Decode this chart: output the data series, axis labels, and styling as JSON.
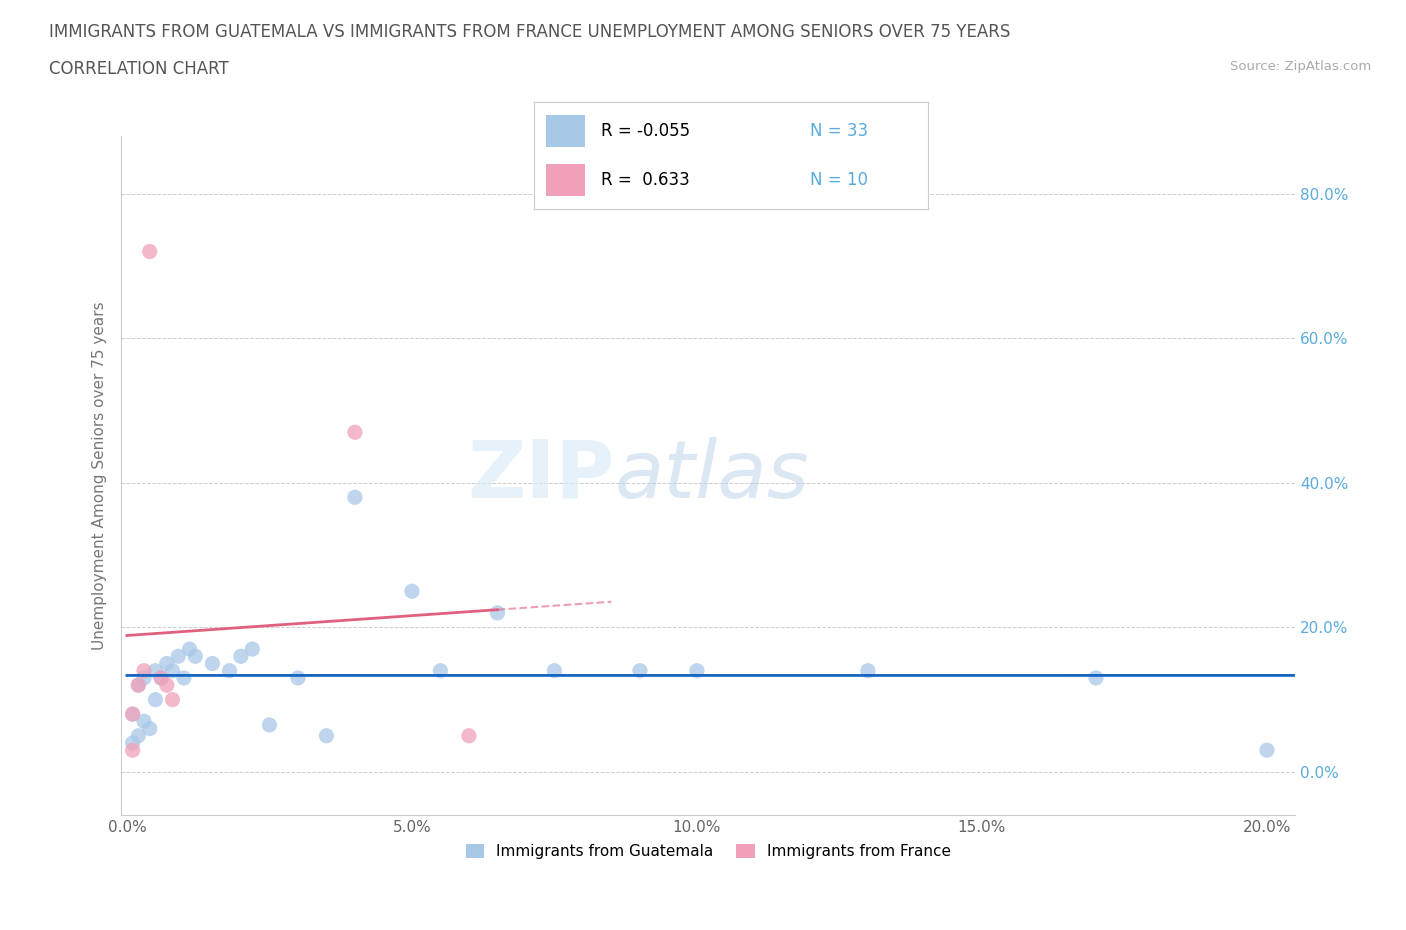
{
  "title_line1": "IMMIGRANTS FROM GUATEMALA VS IMMIGRANTS FROM FRANCE UNEMPLOYMENT AMONG SENIORS OVER 75 YEARS",
  "title_line2": "CORRELATION CHART",
  "source_text": "Source: ZipAtlas.com",
  "ylabel": "Unemployment Among Seniors over 75 years",
  "xlim": [
    -0.001,
    0.205
  ],
  "ylim": [
    -0.06,
    0.88
  ],
  "xticks": [
    0.0,
    0.05,
    0.1,
    0.15,
    0.2
  ],
  "yticks": [
    0.0,
    0.2,
    0.4,
    0.6,
    0.8
  ],
  "xtick_labels": [
    "0.0%",
    "5.0%",
    "10.0%",
    "15.0%",
    "20.0%"
  ],
  "ytick_labels": [
    "0.0%",
    "20.0%",
    "40.0%",
    "60.0%",
    "80.0%"
  ],
  "guatemala_color": "#a8c8e8",
  "france_color": "#f0a0b8",
  "trend_guatemala_color": "#1565c0",
  "trend_france_color": "#e06080",
  "r_guatemala": -0.055,
  "n_guatemala": 33,
  "r_france": 0.633,
  "n_france": 10,
  "legend_label_guatemala": "Immigrants from Guatemala",
  "legend_label_france": "Immigrants from France",
  "watermark_zip": "ZIP",
  "watermark_atlas": "atlas",
  "background_color": "#ffffff",
  "grid_color": "#cccccc",
  "guatemala_points_x": [
    0.001,
    0.001,
    0.002,
    0.002,
    0.003,
    0.003,
    0.004,
    0.005,
    0.005,
    0.006,
    0.007,
    0.008,
    0.009,
    0.01,
    0.011,
    0.012,
    0.015,
    0.018,
    0.02,
    0.022,
    0.025,
    0.03,
    0.035,
    0.04,
    0.05,
    0.055,
    0.065,
    0.075,
    0.09,
    0.1,
    0.13,
    0.17,
    0.2
  ],
  "guatemala_points_y": [
    0.04,
    0.08,
    0.05,
    0.12,
    0.07,
    0.13,
    0.06,
    0.14,
    0.1,
    0.13,
    0.15,
    0.14,
    0.16,
    0.13,
    0.17,
    0.16,
    0.15,
    0.14,
    0.16,
    0.17,
    0.065,
    0.13,
    0.05,
    0.38,
    0.25,
    0.14,
    0.22,
    0.14,
    0.14,
    0.14,
    0.14,
    0.13,
    0.03
  ],
  "france_points_x": [
    0.001,
    0.001,
    0.002,
    0.003,
    0.004,
    0.006,
    0.007,
    0.008,
    0.04,
    0.06
  ],
  "france_points_y": [
    0.03,
    0.08,
    0.12,
    0.14,
    0.72,
    0.13,
    0.12,
    0.1,
    0.47,
    0.05
  ]
}
